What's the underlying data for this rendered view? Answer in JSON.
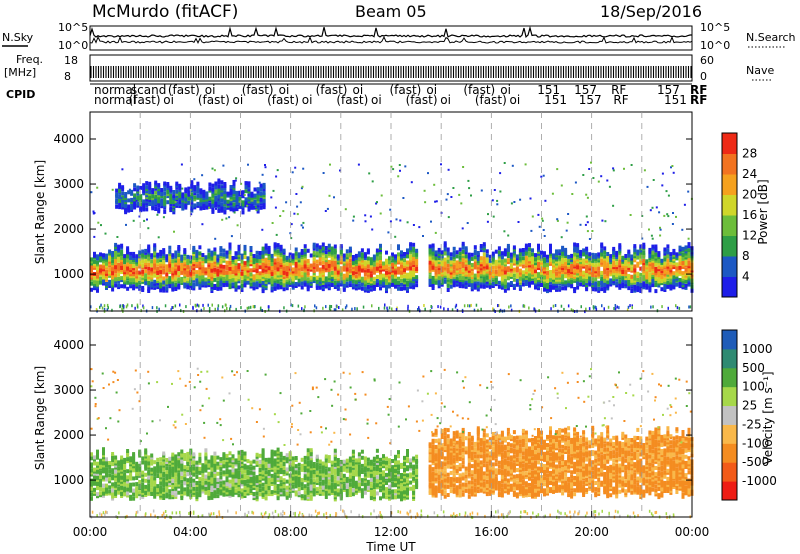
{
  "header": {
    "station": "McMurdo (fitACF)",
    "beam": "Beam 05",
    "date": "18/Sep/2016"
  },
  "top_panels": {
    "nsky_label": "N.Sky",
    "nsky_ticks": [
      "10^5",
      "10^0"
    ],
    "nsearch_label": "N.Search",
    "nsearch_ticks": [
      "10^5",
      "10^0"
    ],
    "freq_label_1": "Freq.",
    "freq_label_2": "[MHz]",
    "freq_ticks": [
      "18",
      "8"
    ],
    "nave_label": "Nave",
    "nave_ticks": [
      "60",
      "0"
    ],
    "cpid_label": "CPID",
    "cpid_rows": [
      [
        "normal",
        "scand",
        "(fast)",
        "oi",
        "(fast)",
        "oi",
        "(fast)",
        "oi",
        "(fast)",
        "oi",
        "(fast)",
        "oi",
        "151",
        "157",
        "RF"
      ],
      [
        "normal",
        "(fast)",
        "oi",
        "(fast)",
        "oi",
        "(fast)",
        "oi",
        "(fast)",
        "oi",
        "(fast)",
        "oi",
        "(fast)",
        "oi",
        "151",
        "157",
        "RF"
      ]
    ],
    "cpid_end_top": "157",
    "cpid_end_top_rf": "RF",
    "cpid_end_bottom": "151",
    "cpid_end_bottom_rf": "RF"
  },
  "colors": {
    "power_scale": [
      "#1e1ee8",
      "#1c58c4",
      "#2e9e46",
      "#6cbd3a",
      "#cfd62a",
      "#f5a11e",
      "#f27320",
      "#ee2a16"
    ],
    "velocity_scale": [
      "#ee1c14",
      "#f25a18",
      "#f48c20",
      "#f9b84a",
      "#c2c2c2",
      "#a6d84a",
      "#4faa3a",
      "#2f8a72",
      "#1f5cb8"
    ],
    "axis": "#000000",
    "grid_dash": "#9a9a9a"
  },
  "chart_data": [
    {
      "type": "heatmap",
      "name": "power",
      "title": "Beam 05",
      "xlabel": "Time UT",
      "ylabel": "Slant Range [km]",
      "x_ticks": [
        "00:00",
        "04:00",
        "08:00",
        "12:00",
        "16:00",
        "20:00",
        "00:00"
      ],
      "xlim_hours": [
        0,
        24
      ],
      "y_ticks": [
        1000,
        2000,
        3000,
        4000
      ],
      "ylim_km": [
        180,
        4600
      ],
      "colorbar_label": "Power [dB]",
      "colorbar_ticks": [
        "4",
        "8",
        "12",
        "16",
        "20",
        "24",
        "28"
      ],
      "colorbar_range_db": [
        0,
        30
      ],
      "echo_bands": [
        {
          "t_start": 0.0,
          "t_end": 13.0,
          "range_lo": 650,
          "range_hi": 1500,
          "peak_db": 28
        },
        {
          "t_start": 13.5,
          "t_end": 24.0,
          "range_lo": 650,
          "range_hi": 1500,
          "peak_db": 26
        },
        {
          "t_start": 1.0,
          "t_end": 7.0,
          "range_lo": 2400,
          "range_hi": 2900,
          "peak_db": 10
        }
      ]
    },
    {
      "type": "heatmap",
      "name": "velocity",
      "xlabel": "Time UT",
      "ylabel": "Slant Range [km]",
      "x_ticks": [
        "00:00",
        "04:00",
        "08:00",
        "12:00",
        "16:00",
        "20:00",
        "00:00"
      ],
      "xlim_hours": [
        0,
        24
      ],
      "y_ticks": [
        1000,
        2000,
        3000,
        4000
      ],
      "ylim_km": [
        180,
        4600
      ],
      "colorbar_label": "Velocity [m s^-1]",
      "colorbar_ticks": [
        "1000",
        "500",
        "100",
        "25",
        "-25",
        "-100",
        "-500",
        "-1000"
      ],
      "echo_bands": [
        {
          "t_start": 0.0,
          "t_end": 13.0,
          "range_lo": 600,
          "range_hi": 1500,
          "velocity": 120
        },
        {
          "t_start": 13.5,
          "t_end": 24.0,
          "range_lo": 650,
          "range_hi": 2000,
          "velocity": -150
        }
      ]
    }
  ]
}
